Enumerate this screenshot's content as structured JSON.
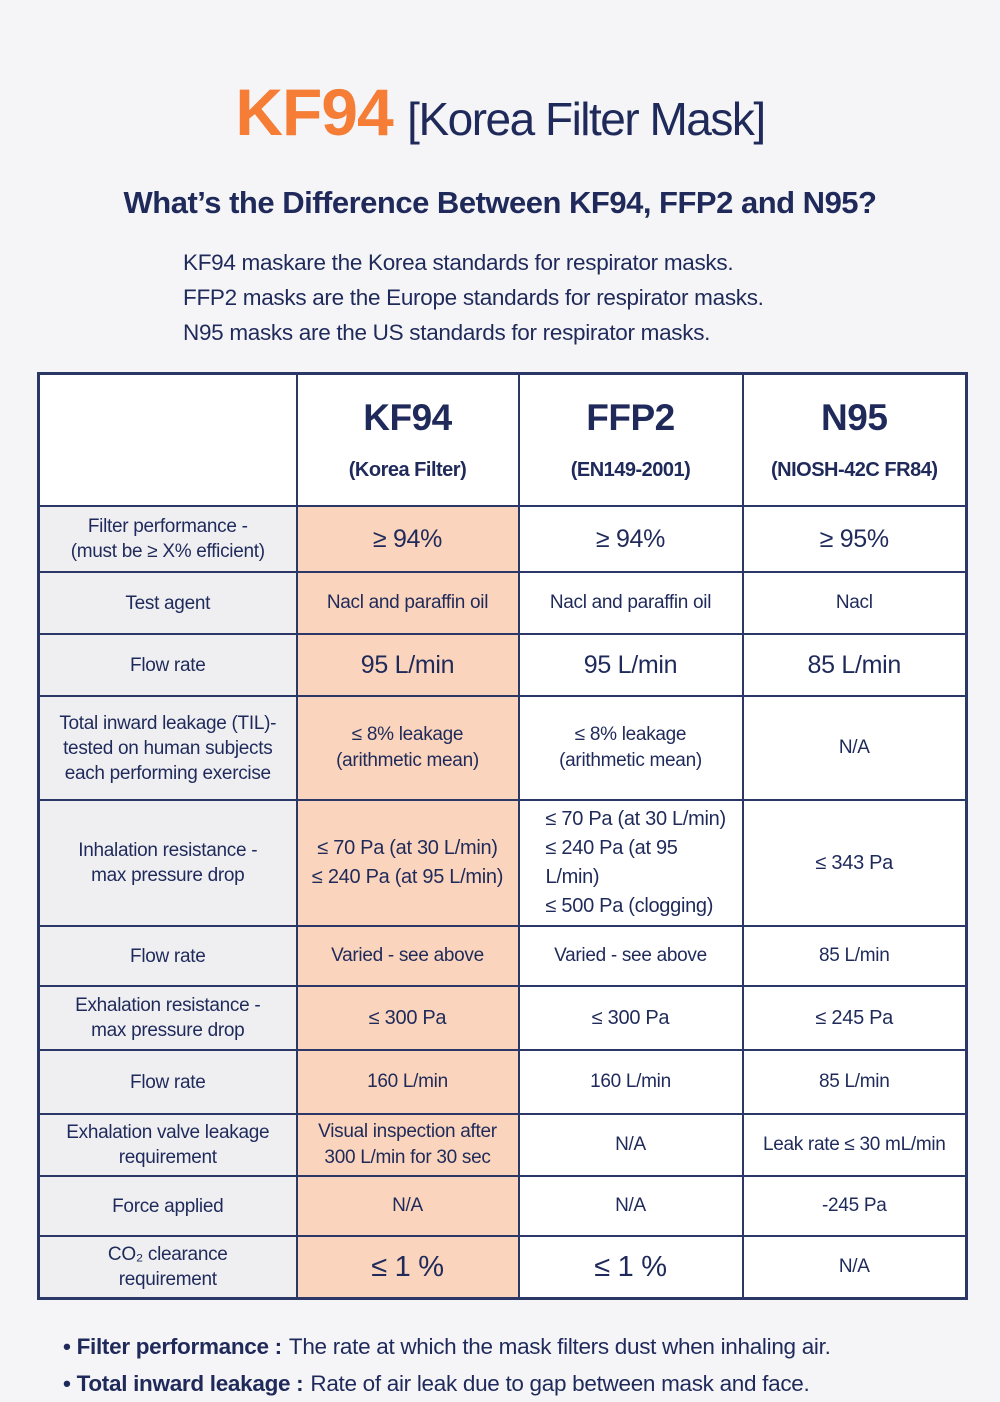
{
  "header": {
    "title_main": "KF94",
    "title_bracket": "[Korea Filter Mask]",
    "subtitle": "What’s the Difference Between KF94, FFP2 and N95?"
  },
  "intro": {
    "lines": [
      "KF94 maskare the Korea standards for respirator masks.",
      "FFP2 masks are the Europe standards for respirator masks.",
      "N95 masks are the US standards for respirator masks."
    ]
  },
  "table": {
    "columns": [
      {
        "name": "KF94",
        "sub": "(Korea Filter)"
      },
      {
        "name": "FFP2",
        "sub": "(EN149-2001)"
      },
      {
        "name": "N95",
        "sub": "(NIOSH-42C FR84)"
      }
    ],
    "rows": [
      {
        "label": "Filter performance -\n(must be ≥ X% efficient)",
        "kf94": "≥ 94%",
        "ffp2": "≥ 94%",
        "n95": "≥ 95%"
      },
      {
        "label": "Test agent",
        "kf94": "Nacl and paraffin oil",
        "ffp2": "Nacl and paraffin oil",
        "n95": "Nacl"
      },
      {
        "label": "Flow rate",
        "kf94": "95 L/min",
        "ffp2": "95 L/min",
        "n95": "85 L/min"
      },
      {
        "label": "Total inward leakage (TIL)-\ntested on human subjects\neach performing exercise",
        "kf94": "≤ 8% leakage\n(arithmetic mean)",
        "ffp2": "≤ 8% leakage\n(arithmetic mean)",
        "n95": "N/A"
      },
      {
        "label": "Inhalation resistance -\nmax pressure drop",
        "kf94": "≤ 70 Pa (at 30 L/min)\n≤ 240 Pa (at 95 L/min)",
        "ffp2": "≤ 70 Pa (at 30 L/min)\n≤ 240 Pa (at 95 L/min)\n≤ 500 Pa (clogging)",
        "n95": "≤ 343 Pa"
      },
      {
        "label": "Flow rate",
        "kf94": "Varied - see above",
        "ffp2": "Varied - see above",
        "n95": "85 L/min"
      },
      {
        "label": "Exhalation resistance -\nmax pressure drop",
        "kf94": "≤ 300 Pa",
        "ffp2": "≤ 300 Pa",
        "n95": "≤ 245 Pa"
      },
      {
        "label": "Flow rate",
        "kf94": "160 L/min",
        "ffp2": "160 L/min",
        "n95": "85 L/min"
      },
      {
        "label": "Exhalation valve leakage\nrequirement",
        "kf94": "Visual inspection after\n300 L/min for 30 sec",
        "ffp2": "N/A",
        "n95": "Leak rate ≤ 30 mL/min"
      },
      {
        "label": "Force applied",
        "kf94": "N/A",
        "ffp2": "N/A",
        "n95": "-245 Pa"
      },
      {
        "label": "CO₂ clearance\nrequirement",
        "kf94": "≤ 1 %",
        "ffp2": "≤ 1 %",
        "n95": "N/A"
      }
    ]
  },
  "footnotes": {
    "bullet": "•",
    "items": [
      {
        "term": "Filter performance :",
        "text": "The rate at which the mask filters dust when inhaling air."
      },
      {
        "term": "Total inward leakage :",
        "text": "Rate of air leak due to gap between mask and face."
      }
    ]
  },
  "colors": {
    "accent_orange": "#f57d35",
    "navy_text": "#1f2a5a",
    "table_border": "#2b3766",
    "kf94_column_bg": "#fad4bc",
    "kf94_header_bg": "#d8d8d8",
    "label_column_bg": "#efeff2",
    "page_bg": "#f5f5f7"
  }
}
